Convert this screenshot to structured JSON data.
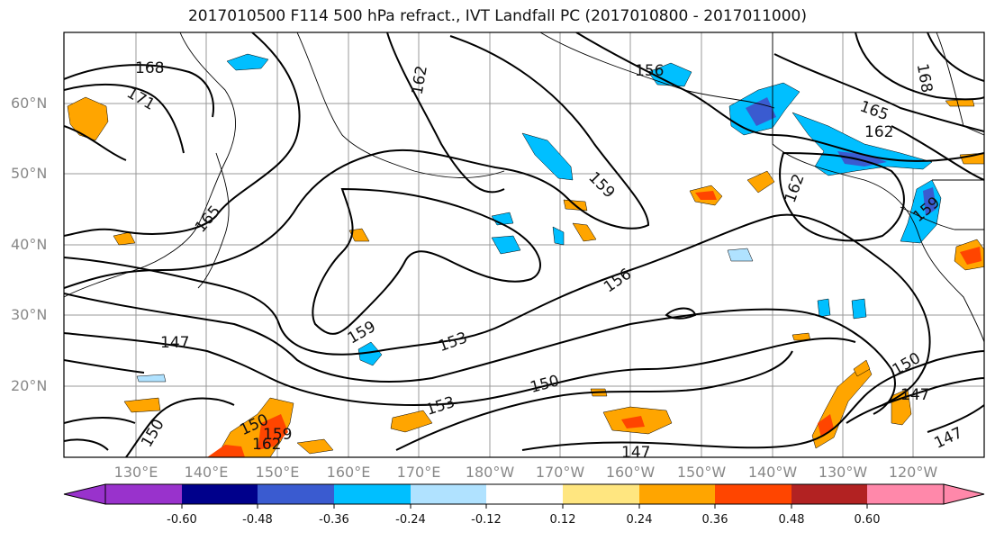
{
  "title": "2017010500 F114 500 hPa refract., IVT Landfall PC (2017010800 - 2017011000)",
  "lat_labels": [
    "60°N",
    "50°N",
    "40°N",
    "30°N",
    "20°N"
  ],
  "lon_labels": [
    "130°E",
    "140°E",
    "150°E",
    "160°E",
    "170°E",
    "180°W",
    "170°W",
    "160°W",
    "150°W",
    "140°W",
    "130°W",
    "120°W"
  ],
  "contour_labels": [
    "168",
    "171",
    "162",
    "156",
    "165",
    "162",
    "168",
    "159",
    "162",
    "159",
    "165",
    "156",
    "159",
    "153",
    "147",
    "150",
    "153",
    "150",
    "147",
    "147",
    "147",
    "150",
    "150",
    "159",
    "162"
  ],
  "colorbar": {
    "colors": [
      "#9932cc",
      "#00008b",
      "#3a5bd0",
      "#00bfff",
      "#b0e2ff",
      "#ffffff",
      "#ffe680",
      "#ffa500",
      "#ff4500",
      "#b22222",
      "#ff88aa"
    ],
    "ticks": [
      "-0.60",
      "-0.48",
      "-0.36",
      "-0.24",
      "-0.12",
      "0.12",
      "0.24",
      "0.36",
      "0.48",
      "0.60"
    ]
  }
}
